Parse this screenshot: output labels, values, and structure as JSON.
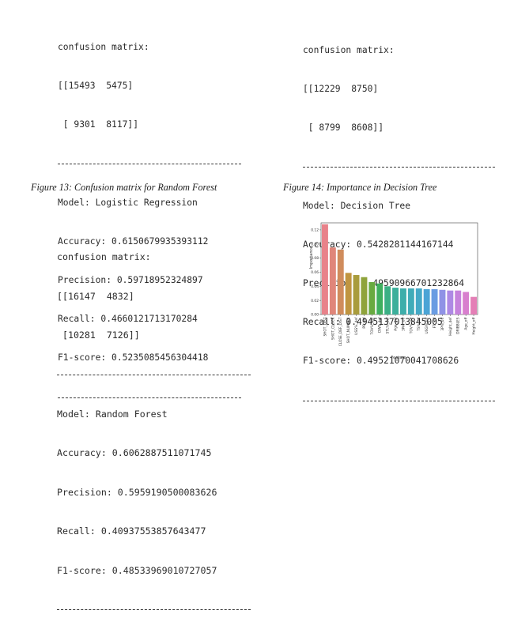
{
  "blocks": [
    {
      "header": "confusion matrix:",
      "matrix_rows": [
        "[[15493  5475]",
        " [ 9301  8117]]"
      ],
      "model_line": "Model: Logistic Regression",
      "accuracy_line": "Accuracy: 0.6150679935393112",
      "precision_line": "Precision: 0.59718952324897",
      "recall_line": "Recall: 0.4660121713170284",
      "f1_line": "F1-score: 0.5235085456304418"
    },
    {
      "header": "confusion matrix:",
      "matrix_rows": [
        "[[12229  8750]",
        " [ 8799  8608]]"
      ],
      "model_line": "Model: Decision Tree",
      "accuracy_line": "Accuracy: 0.5428281144167144",
      "precision_line": "Precision: 0.49590966701232864",
      "recall_line": "Recall: 0.4945137013845005",
      "f1_line": "F1-score: 0.49521070041708626"
    },
    {
      "header": "confusion matrix:",
      "matrix_rows": [
        "[[16147  4832]",
        " [10281  7126]]"
      ],
      "model_line": "Model: Random Forest",
      "accuracy_line": "Accuracy: 0.6062887511071745",
      "precision_line": "Precision: 0.5959190500083626",
      "recall_line": "Recall: 0.40937553857643477",
      "f1_line": "F1-score: 0.48533969010727057"
    }
  ],
  "captions": {
    "fig13": "Figure 13: Confusion matrix for Random Forest",
    "fig14": "Figure 14: Importance in Decision Tree"
  },
  "chart_data": {
    "type": "bar",
    "xlabel": "Feature",
    "ylabel": "Importance",
    "ylim": [
      0,
      0.13
    ],
    "yticks": [
      "0.00",
      "0.02",
      "0.04",
      "0.06",
      "0.08",
      "0.10",
      "0.12"
    ],
    "categories": [
      "SHOT_DIST",
      "SHOT_CLOCK",
      "CLOSE_DEF_DIST",
      "SHOT_NUMBER",
      "USG%_def",
      "PF_def",
      "TOV%_def",
      "DWS_def",
      "STL%_def",
      "Age_def",
      "3PAr_off",
      "TOV%_off",
      "TS%_off",
      "USG%_off",
      "FTr_off",
      "3P%_off",
      "Height_def",
      "DRIBBLES",
      "Age_off",
      "Height_off"
    ],
    "values": [
      0.128,
      0.095,
      0.092,
      0.059,
      0.056,
      0.053,
      0.046,
      0.044,
      0.04,
      0.038,
      0.037,
      0.037,
      0.037,
      0.036,
      0.036,
      0.035,
      0.034,
      0.034,
      0.032,
      0.025
    ],
    "colors": [
      "#e8828a",
      "#e0867a",
      "#d08c5c",
      "#c09540",
      "#a99c3c",
      "#8fa33b",
      "#68aa40",
      "#3faf5f",
      "#3bb085",
      "#3caf9b",
      "#3eaeaa",
      "#40acb8",
      "#44a9c6",
      "#4aa4d6",
      "#6a9ce2",
      "#8f92e6",
      "#ae89e4",
      "#c682dc",
      "#d87fce",
      "#e47fb6"
    ]
  }
}
